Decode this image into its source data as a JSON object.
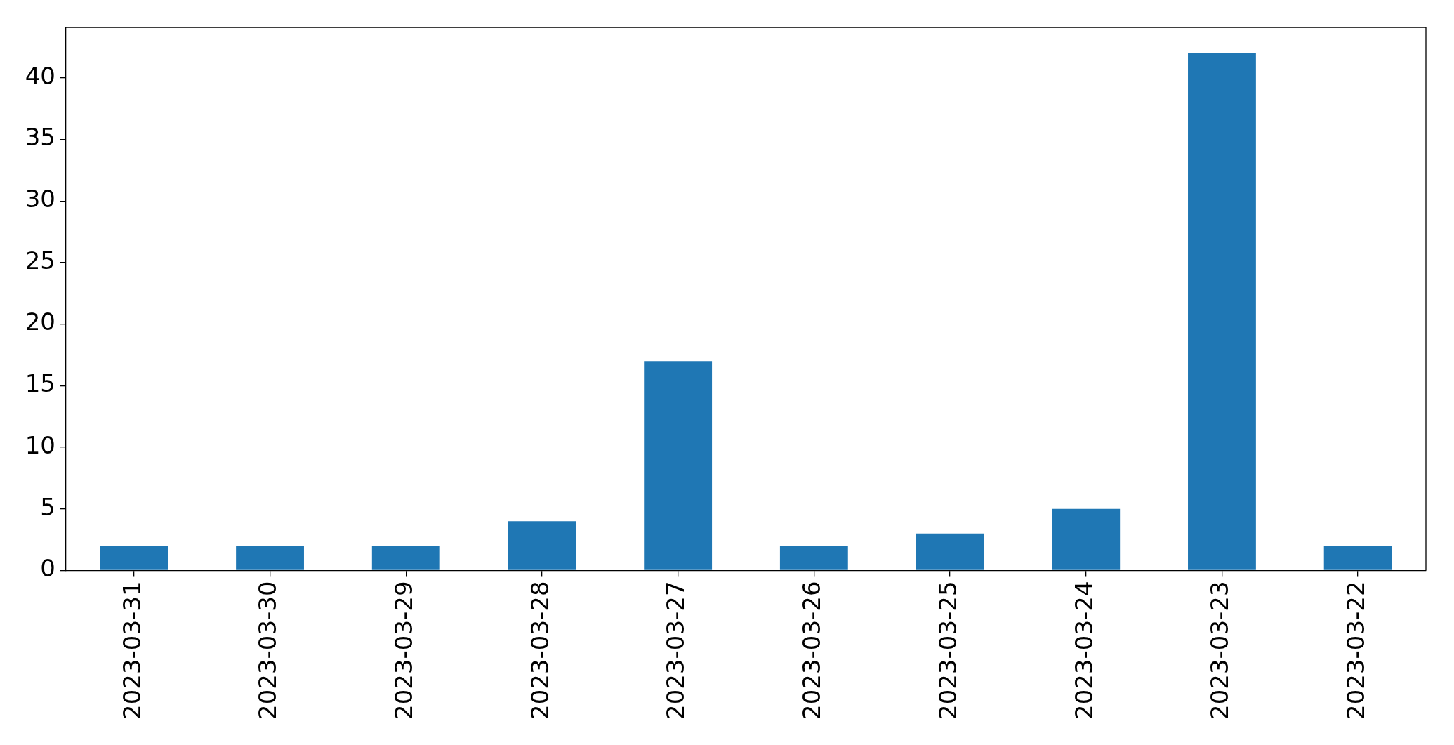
{
  "chart_data": {
    "type": "bar",
    "categories": [
      "2023-03-31",
      "2023-03-30",
      "2023-03-29",
      "2023-03-28",
      "2023-03-27",
      "2023-03-26",
      "2023-03-25",
      "2023-03-24",
      "2023-03-23",
      "2023-03-22"
    ],
    "values": [
      2,
      2,
      2,
      4,
      17,
      2,
      3,
      5,
      42,
      2
    ],
    "color": "#1f77b4",
    "ylim": [
      0,
      44.1
    ],
    "yticks": [
      0,
      5,
      10,
      15,
      20,
      25,
      30,
      35,
      40
    ],
    "grid": false,
    "legend": false
  }
}
